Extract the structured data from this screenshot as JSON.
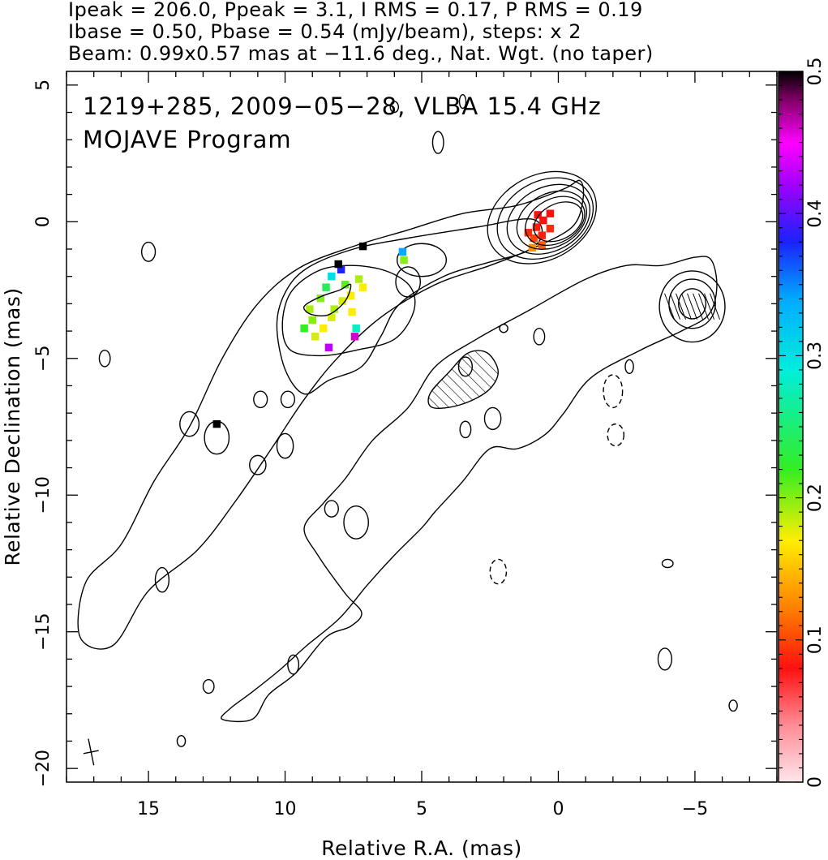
{
  "header": {
    "line1": "Ipeak = 206.0, Ppeak = 3.1, I RMS = 0.17, P RMS = 0.19",
    "line2": "Ibase = 0.50, Pbase = 0.54 (mJy/beam), steps: x 2",
    "line3": "Beam: 0.99x0.57 mas at −11.6 deg., Nat. Wgt. (no taper)"
  },
  "chart_data": {
    "type": "heatmap",
    "title_lines": [
      "1219+285, 2009−05−28, VLBA 15.4 GHz",
      "MOJAVE Program"
    ],
    "xlabel": "Relative R.A. (mas)",
    "ylabel": "Relative Declination (mas)",
    "xlim": [
      18,
      -8
    ],
    "ylim": [
      -20.5,
      5.5
    ],
    "xticks": [
      {
        "v": 15,
        "label": "15"
      },
      {
        "v": 10,
        "label": "10"
      },
      {
        "v": 5,
        "label": "5"
      },
      {
        "v": 0,
        "label": "0"
      },
      {
        "v": -5,
        "label": "−5"
      }
    ],
    "yticks": [
      {
        "v": 5,
        "label": "5"
      },
      {
        "v": 0,
        "label": "0"
      },
      {
        "v": -5,
        "label": "−5"
      },
      {
        "v": -10,
        "label": "−10"
      },
      {
        "v": -15,
        "label": "−15"
      },
      {
        "v": -20,
        "label": "−20"
      }
    ],
    "colorbar": {
      "range": [
        0,
        0.5
      ],
      "ticks": [
        {
          "v": 0,
          "label": "0"
        },
        {
          "v": 0.1,
          "label": "0.1"
        },
        {
          "v": 0.2,
          "label": "0.2"
        },
        {
          "v": 0.3,
          "label": "0.3"
        },
        {
          "v": 0.4,
          "label": "0.4"
        },
        {
          "v": 0.5,
          "label": "0.5"
        }
      ],
      "stops": [
        {
          "v": 0.0,
          "color": "#ffe6ea"
        },
        {
          "v": 0.04,
          "color": "#ff8c96"
        },
        {
          "v": 0.08,
          "color": "#ff1010"
        },
        {
          "v": 0.12,
          "color": "#ff7a00"
        },
        {
          "v": 0.17,
          "color": "#ffee00"
        },
        {
          "v": 0.22,
          "color": "#33ee22"
        },
        {
          "v": 0.29,
          "color": "#00eedd"
        },
        {
          "v": 0.34,
          "color": "#00aaff"
        },
        {
          "v": 0.38,
          "color": "#1a22ff"
        },
        {
          "v": 0.42,
          "color": "#a000ff"
        },
        {
          "v": 0.45,
          "color": "#ff00ff"
        },
        {
          "v": 0.48,
          "color": "#800066"
        },
        {
          "v": 0.5,
          "color": "#000000"
        }
      ]
    },
    "peak_position": [
      0,
      0
    ],
    "beam": {
      "x": 17.1,
      "y": -19.4,
      "major": 0.99,
      "minor": 0.57,
      "pa_deg": -11.6
    },
    "contours": {
      "core_levels": [
        {
          "rx": 0.95,
          "ry": 0.9
        },
        {
          "rx": 1.15,
          "ry": 1.12
        },
        {
          "rx": 1.35,
          "ry": 1.35
        },
        {
          "rx": 1.6,
          "ry": 1.62
        },
        {
          "rx": 1.85,
          "ry": 1.9
        },
        {
          "rx": 2.1,
          "ry": 2.15
        }
      ],
      "outer_jet": [
        [
          -0.8,
          1.5
        ],
        [
          -0.2,
          1.2
        ],
        [
          1.5,
          0.6
        ],
        [
          3.5,
          0.3
        ],
        [
          5.5,
          -0.3
        ],
        [
          7.5,
          -0.9
        ],
        [
          9.5,
          -1.7
        ],
        [
          11,
          -3.0
        ],
        [
          12.3,
          -5.0
        ],
        [
          13.5,
          -7.5
        ],
        [
          14.8,
          -9.5
        ],
        [
          16,
          -11.8
        ],
        [
          17.3,
          -13.2
        ],
        [
          17.5,
          -15.2
        ],
        [
          16.3,
          -15.5
        ],
        [
          15,
          -13.5
        ],
        [
          13.2,
          -12
        ],
        [
          11.8,
          -10.2
        ],
        [
          10.5,
          -8.3
        ],
        [
          9.3,
          -6.5
        ],
        [
          8.1,
          -5.0
        ],
        [
          6.5,
          -3.5
        ],
        [
          4.5,
          -2.3
        ],
        [
          2.5,
          -1.6
        ],
        [
          1.0,
          -1.0
        ],
        [
          -0.5,
          -0.2
        ],
        [
          -0.9,
          0.8
        ]
      ],
      "mid_jet": [
        [
          1.0,
          0.1
        ],
        [
          3.0,
          -0.2
        ],
        [
          5.5,
          -0.6
        ],
        [
          7.5,
          -1.0
        ],
        [
          9.2,
          -1.7
        ],
        [
          10.0,
          -2.6
        ],
        [
          10.3,
          -3.8
        ],
        [
          10.0,
          -5.4
        ],
        [
          9.3,
          -6.3
        ],
        [
          8.4,
          -5.8
        ],
        [
          7.2,
          -5.3
        ],
        [
          6.5,
          -4.2
        ],
        [
          5.8,
          -3.0
        ],
        [
          4.2,
          -2.0
        ],
        [
          2.6,
          -1.5
        ],
        [
          1.2,
          -1.1
        ],
        [
          0.6,
          -0.5
        ]
      ],
      "inner_jet": [
        [
          8.8,
          -1.8
        ],
        [
          7.6,
          -1.6
        ],
        [
          6.3,
          -1.8
        ],
        [
          5.4,
          -2.4
        ],
        [
          5.3,
          -3.3
        ],
        [
          6.0,
          -4.3
        ],
        [
          7.4,
          -4.7
        ],
        [
          8.7,
          -4.9
        ],
        [
          9.8,
          -4.7
        ],
        [
          10.1,
          -3.8
        ],
        [
          9.8,
          -2.6
        ]
      ],
      "knot_ridge": [
        [
          9.2,
          -3.0
        ],
        [
          8.6,
          -2.7
        ],
        [
          8.0,
          -2.5
        ],
        [
          7.6,
          -2.3
        ],
        [
          7.8,
          -2.9
        ],
        [
          8.4,
          -3.4
        ],
        [
          9.0,
          -3.4
        ],
        [
          9.3,
          -3.2
        ]
      ],
      "southern_jet": [
        [
          -5.6,
          -1.4
        ],
        [
          -5.8,
          -2.4
        ],
        [
          -5.5,
          -3.4
        ],
        [
          -4.5,
          -4.0
        ],
        [
          -3.0,
          -4.7
        ],
        [
          -1.2,
          -5.7
        ],
        [
          -0.2,
          -7.0
        ],
        [
          0.5,
          -7.8
        ],
        [
          1.5,
          -8.3
        ],
        [
          2.5,
          -8.3
        ],
        [
          3.5,
          -9.5
        ],
        [
          4.5,
          -10.6
        ],
        [
          5.0,
          -11.2
        ],
        [
          6.0,
          -12.2
        ],
        [
          7.0,
          -13.3
        ],
        [
          8.0,
          -14.5
        ],
        [
          9.2,
          -15.5
        ],
        [
          10.2,
          -16.4
        ],
        [
          11.2,
          -17.2
        ],
        [
          12.0,
          -17.8
        ],
        [
          12.3,
          -18.2
        ],
        [
          11.2,
          -18.2
        ],
        [
          10.6,
          -17.3
        ],
        [
          9.6,
          -16.5
        ],
        [
          8.5,
          -15.2
        ],
        [
          7.6,
          -14.8
        ],
        [
          7.2,
          -14.3
        ],
        [
          7.8,
          -13.6
        ],
        [
          8.8,
          -12.2
        ],
        [
          9.3,
          -11.2
        ],
        [
          8.6,
          -10.3
        ],
        [
          7.8,
          -9.4
        ],
        [
          6.8,
          -8.0
        ],
        [
          5.5,
          -6.8
        ],
        [
          4.5,
          -5.3
        ],
        [
          3.0,
          -4.3
        ],
        [
          1.0,
          -3.2
        ],
        [
          -1.0,
          -2.1
        ],
        [
          -2.5,
          -1.6
        ],
        [
          -3.8,
          -1.6
        ],
        [
          -5.0,
          -1.3
        ]
      ],
      "southern_knot_levels": [
        {
          "x": -4.9,
          "y": -3.0,
          "rx": 0.5,
          "ry": 0.55
        },
        {
          "x": -4.9,
          "y": -3.0,
          "rx": 0.85,
          "ry": 0.9
        },
        {
          "x": -4.9,
          "y": -3.1,
          "rx": 1.2,
          "ry": 1.3
        }
      ],
      "hatched_region": [
        [
          4.7,
          -6.3
        ],
        [
          4.0,
          -5.5
        ],
        [
          3.3,
          -4.8
        ],
        [
          2.6,
          -4.8
        ],
        [
          2.2,
          -5.5
        ],
        [
          2.6,
          -6.2
        ],
        [
          3.6,
          -6.7
        ],
        [
          4.6,
          -6.8
        ]
      ],
      "islands": [
        {
          "x": 15.0,
          "y": -1.1,
          "rx": 0.25,
          "ry": 0.35,
          "neg": false
        },
        {
          "x": 16.6,
          "y": -5.0,
          "rx": 0.2,
          "ry": 0.3,
          "neg": false
        },
        {
          "x": 13.5,
          "y": -7.4,
          "rx": 0.35,
          "ry": 0.45,
          "neg": false
        },
        {
          "x": 12.5,
          "y": -7.9,
          "rx": 0.45,
          "ry": 0.6,
          "neg": false
        },
        {
          "x": 11.0,
          "y": -8.9,
          "rx": 0.3,
          "ry": 0.35,
          "neg": false
        },
        {
          "x": 10.0,
          "y": -8.2,
          "rx": 0.3,
          "ry": 0.45,
          "neg": false
        },
        {
          "x": 10.9,
          "y": -6.5,
          "rx": 0.25,
          "ry": 0.3,
          "neg": false
        },
        {
          "x": 9.9,
          "y": -6.5,
          "rx": 0.25,
          "ry": 0.3,
          "neg": false
        },
        {
          "x": 14.5,
          "y": -13.1,
          "rx": 0.25,
          "ry": 0.45,
          "neg": false
        },
        {
          "x": 8.3,
          "y": -10.5,
          "rx": 0.25,
          "ry": 0.3,
          "neg": false
        },
        {
          "x": 7.4,
          "y": -11.0,
          "rx": 0.45,
          "ry": 0.6,
          "neg": false
        },
        {
          "x": 9.7,
          "y": -16.2,
          "rx": 0.2,
          "ry": 0.35,
          "neg": false
        },
        {
          "x": 12.8,
          "y": -17.0,
          "rx": 0.2,
          "ry": 0.25,
          "neg": false
        },
        {
          "x": 13.8,
          "y": -19.0,
          "rx": 0.15,
          "ry": 0.2,
          "neg": false
        },
        {
          "x": 3.4,
          "y": -7.6,
          "rx": 0.2,
          "ry": 0.3,
          "neg": false
        },
        {
          "x": 2.4,
          "y": -7.2,
          "rx": 0.3,
          "ry": 0.4,
          "neg": false
        },
        {
          "x": 0.7,
          "y": -4.2,
          "rx": 0.2,
          "ry": 0.3,
          "neg": false
        },
        {
          "x": 2.0,
          "y": -3.9,
          "rx": 0.15,
          "ry": 0.15,
          "neg": false
        },
        {
          "x": 5.0,
          "y": -1.4,
          "rx": 0.9,
          "ry": 0.6,
          "neg": false
        },
        {
          "x": 5.5,
          "y": -2.2,
          "rx": 0.45,
          "ry": 0.55,
          "neg": false
        },
        {
          "x": 3.4,
          "y": -5.3,
          "rx": 0.25,
          "ry": 0.35,
          "neg": false
        },
        {
          "x": 4.4,
          "y": 2.9,
          "rx": 0.2,
          "ry": 0.4,
          "neg": false
        },
        {
          "x": 6.0,
          "y": 4.2,
          "rx": 0.15,
          "ry": 0.2,
          "neg": false
        },
        {
          "x": 3.5,
          "y": 4.4,
          "rx": 0.12,
          "ry": 0.25,
          "neg": false
        },
        {
          "x": -2.6,
          "y": -5.3,
          "rx": 0.15,
          "ry": 0.25,
          "neg": false
        },
        {
          "x": -4.0,
          "y": -12.5,
          "rx": 0.2,
          "ry": 0.15,
          "neg": false
        },
        {
          "x": -3.9,
          "y": -16.0,
          "rx": 0.25,
          "ry": 0.4,
          "neg": false
        },
        {
          "x": -6.4,
          "y": -17.7,
          "rx": 0.15,
          "ry": 0.2,
          "neg": false
        },
        {
          "x": -2.0,
          "y": -6.2,
          "rx": 0.35,
          "ry": 0.6,
          "neg": true
        },
        {
          "x": -2.1,
          "y": -7.8,
          "rx": 0.3,
          "ry": 0.4,
          "neg": true
        },
        {
          "x": 2.2,
          "y": -12.8,
          "rx": 0.3,
          "ry": 0.45,
          "neg": true
        }
      ]
    },
    "polarization_pixels": [
      {
        "x": 0.8,
        "y": -0.2,
        "value": 0.085
      },
      {
        "x": 0.55,
        "y": 0.05,
        "value": 0.08
      },
      {
        "x": 0.3,
        "y": -0.25,
        "value": 0.09
      },
      {
        "x": 0.9,
        "y": -0.6,
        "value": 0.1
      },
      {
        "x": 0.6,
        "y": -0.5,
        "value": 0.085
      },
      {
        "x": 1.1,
        "y": -0.4,
        "value": 0.09
      },
      {
        "x": 0.95,
        "y": -0.95,
        "value": 0.13
      },
      {
        "x": 0.6,
        "y": -0.85,
        "value": 0.11
      },
      {
        "x": 0.3,
        "y": 0.3,
        "value": 0.08
      },
      {
        "x": 0.75,
        "y": 0.25,
        "value": 0.08
      },
      {
        "x": 9.3,
        "y": -3.9,
        "value": 0.22
      },
      {
        "x": 9.0,
        "y": -3.6,
        "value": 0.2
      },
      {
        "x": 8.9,
        "y": -4.2,
        "value": 0.18
      },
      {
        "x": 8.6,
        "y": -3.9,
        "value": 0.17
      },
      {
        "x": 9.1,
        "y": -3.2,
        "value": 0.19
      },
      {
        "x": 8.7,
        "y": -2.8,
        "value": 0.2
      },
      {
        "x": 8.5,
        "y": -2.4,
        "value": 0.24
      },
      {
        "x": 8.2,
        "y": -3.2,
        "value": 0.19
      },
      {
        "x": 8.3,
        "y": -2.0,
        "value": 0.3
      },
      {
        "x": 7.95,
        "y": -1.75,
        "value": 0.38
      },
      {
        "x": 8.05,
        "y": -1.55,
        "value": 0.5
      },
      {
        "x": 7.8,
        "y": -2.3,
        "value": 0.21
      },
      {
        "x": 7.6,
        "y": -2.7,
        "value": 0.17
      },
      {
        "x": 7.9,
        "y": -2.9,
        "value": 0.18
      },
      {
        "x": 7.3,
        "y": -2.1,
        "value": 0.19
      },
      {
        "x": 7.15,
        "y": -2.4,
        "value": 0.17
      },
      {
        "x": 7.55,
        "y": -3.3,
        "value": 0.17
      },
      {
        "x": 8.3,
        "y": -3.5,
        "value": 0.18
      },
      {
        "x": 8.4,
        "y": -4.6,
        "value": 0.43
      },
      {
        "x": 7.4,
        "y": -3.9,
        "value": 0.28
      },
      {
        "x": 7.45,
        "y": -4.2,
        "value": 0.46
      },
      {
        "x": 5.7,
        "y": -1.1,
        "value": 0.34
      },
      {
        "x": 5.65,
        "y": -1.4,
        "value": 0.2
      },
      {
        "x": 7.15,
        "y": -0.9,
        "value": 0.5
      },
      {
        "x": 12.5,
        "y": -7.4,
        "value": 0.5
      }
    ]
  }
}
